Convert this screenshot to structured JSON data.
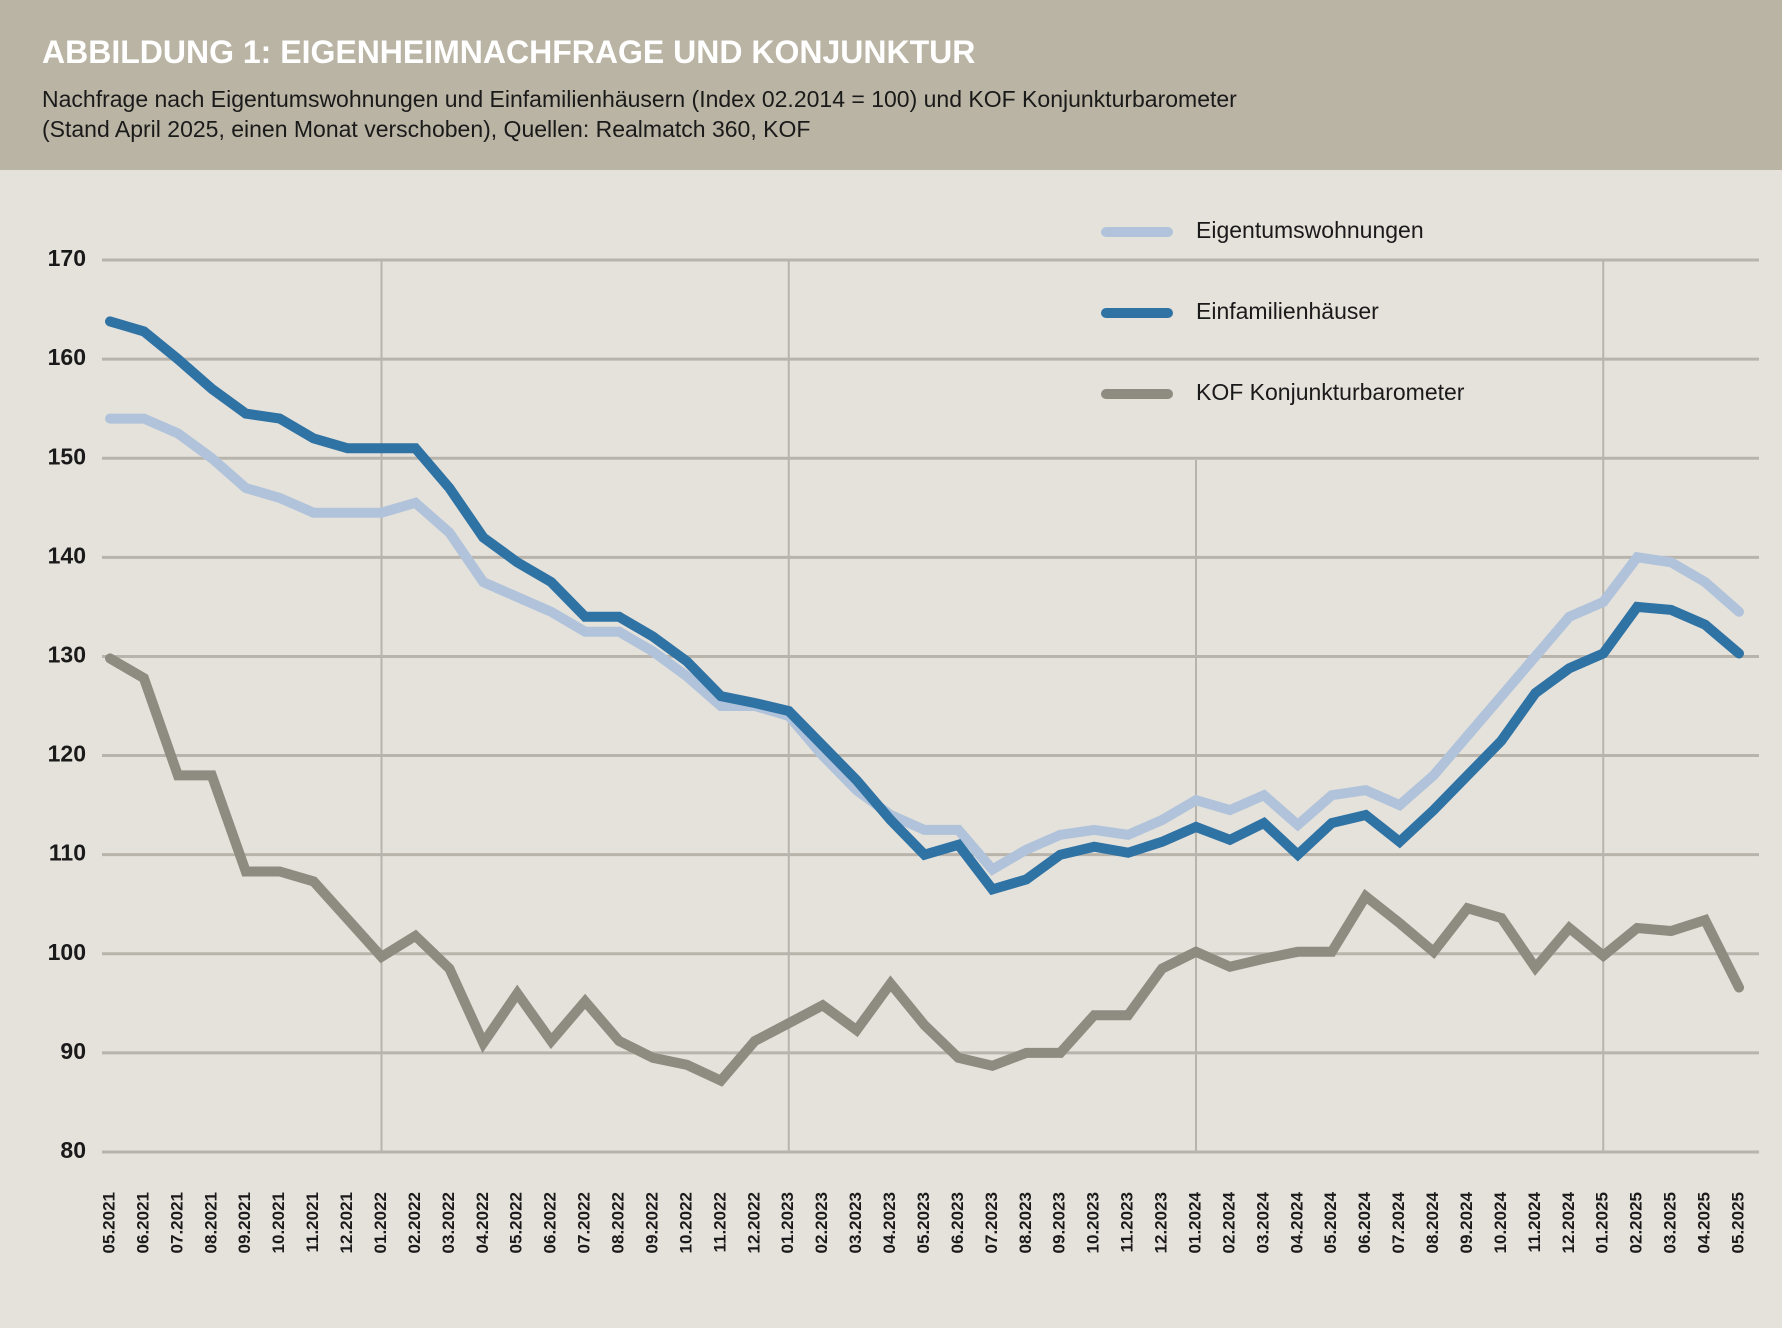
{
  "chart_data": {
    "type": "line",
    "title": "ABBILDUNG 1: EIGENHEIMNACHFRAGE UND KONJUNKTUR",
    "subtitle": [
      "Nachfrage nach Eigentumswohnungen und Einfamilienhäusern (Index 02.2014 = 100) und KOF Konjunkturbarometer",
      "(Stand April 2025, einen Monat verschoben), Quellen: Realmatch 360, KOF"
    ],
    "categories": [
      "05.2021",
      "06.2021",
      "07.2021",
      "08.2021",
      "09.2021",
      "10.2021",
      "11.2021",
      "12.2021",
      "01.2022",
      "02.2022",
      "03.2022",
      "04.2022",
      "05.2022",
      "06.2022",
      "07.2022",
      "08.2022",
      "09.2022",
      "10.2022",
      "11.2022",
      "12.2022",
      "01.2023",
      "02.2023",
      "03.2023",
      "04.2023",
      "05.2023",
      "06.2023",
      "07.2023",
      "08.2023",
      "09.2023",
      "10.2023",
      "11.2023",
      "12.2023",
      "01.2024",
      "02.2024",
      "03.2024",
      "04.2024",
      "05.2024",
      "06.2024",
      "07.2024",
      "08.2024",
      "09.2024",
      "10.2024",
      "11.2024",
      "12.2024",
      "01.2025",
      "02.2025",
      "03.2025",
      "04.2025",
      "05.2025"
    ],
    "series": [
      {
        "name": "Eigentumswohnungen",
        "color": "#b0c3da",
        "values": [
          154,
          154,
          152.5,
          150,
          147,
          146,
          144.5,
          144.5,
          144.5,
          145.5,
          142.5,
          137.5,
          136,
          134.5,
          132.5,
          132.5,
          130.5,
          128,
          125,
          125,
          124,
          120,
          116.5,
          114,
          112.5,
          112.5,
          108.5,
          110.5,
          112,
          112.5,
          112,
          113.5,
          115.5,
          114.5,
          116,
          113,
          116,
          116.5,
          115,
          118,
          122,
          126,
          130,
          134,
          135.5,
          140,
          139.5,
          137.5,
          134.5
        ]
      },
      {
        "name": "Einfamilienhäuser",
        "color": "#2f72a4",
        "values": [
          163.8,
          162.8,
          160,
          157,
          154.5,
          154,
          152,
          151,
          151,
          151,
          147,
          142,
          139.5,
          137.5,
          134,
          134,
          132,
          129.5,
          126,
          125.3,
          124.5,
          121,
          117.5,
          113.5,
          110,
          111,
          106.5,
          107.5,
          110,
          110.8,
          110.2,
          111.3,
          112.8,
          111.5,
          113.2,
          110,
          113.2,
          114,
          111.3,
          114.5,
          118,
          121.5,
          126.3,
          128.8,
          130.3,
          135,
          134.7,
          133.2,
          130.3
        ]
      },
      {
        "name": "KOF Konjunkturbarometer",
        "color": "#8e8c80",
        "values": [
          129.8,
          127.8,
          118,
          118,
          108.3,
          108.3,
          107.3,
          103.5,
          99.7,
          101.8,
          98.5,
          91,
          96,
          91.2,
          95.2,
          91.2,
          89.5,
          88.8,
          87.2,
          91.2,
          93,
          94.8,
          92.3,
          97,
          92.8,
          89.5,
          88.7,
          90,
          90,
          93.8,
          93.8,
          98.5,
          100.2,
          98.7,
          99.5,
          100.2,
          100.2,
          105.8,
          103.1,
          100.2,
          104.6,
          103.6,
          98.6,
          102.6,
          99.8,
          102.6,
          102.3,
          103.4,
          96.6
        ]
      }
    ],
    "ylim": [
      80,
      170
    ],
    "yticks": [
      80,
      90,
      100,
      110,
      120,
      130,
      140,
      150,
      160,
      170
    ],
    "grid": true
  }
}
